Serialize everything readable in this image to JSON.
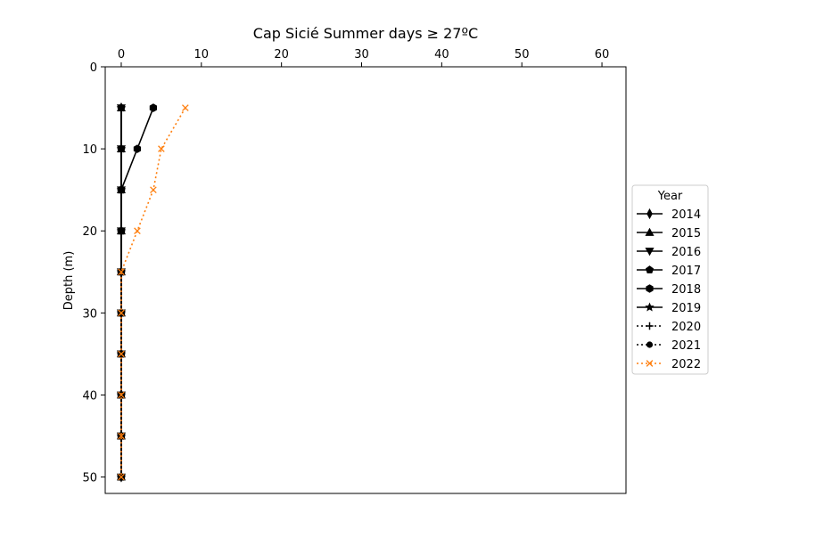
{
  "chart_data": {
    "type": "line",
    "title": "Cap Sicié Summer days ≥ 27ºC",
    "xlabel": "",
    "ylabel": "Depth (m)",
    "xlim": [
      -2,
      63
    ],
    "ylim": [
      52,
      0
    ],
    "x_axis_position": "top",
    "y_inverted": true,
    "xticks": [
      0,
      10,
      20,
      30,
      40,
      50,
      60
    ],
    "xtick_labels": [
      "0",
      "10",
      "20",
      "30",
      "40",
      "50",
      "60"
    ],
    "yticks": [
      0,
      10,
      20,
      30,
      40,
      50
    ],
    "ytick_labels": [
      "0",
      "10",
      "20",
      "30",
      "40",
      "50"
    ],
    "grid": false,
    "legend": {
      "title": "Year",
      "placement": "right"
    },
    "depths": [
      5,
      10,
      15,
      20,
      25,
      30,
      35,
      40,
      45,
      50
    ],
    "series": [
      {
        "name": "2014",
        "color": "#000000",
        "linestyle": "solid",
        "marker": "thin_diamond",
        "values": [
          0,
          0,
          0,
          0,
          0,
          0,
          0,
          0,
          0,
          0
        ]
      },
      {
        "name": "2015",
        "color": "#000000",
        "linestyle": "solid",
        "marker": "triangle_up",
        "values": [
          0,
          0,
          0,
          0,
          0,
          0,
          0,
          0,
          0,
          0
        ]
      },
      {
        "name": "2016",
        "color": "#000000",
        "linestyle": "solid",
        "marker": "triangle_down",
        "values": [
          0,
          0,
          0,
          0,
          0,
          0,
          0,
          0,
          0,
          0
        ]
      },
      {
        "name": "2017",
        "color": "#000000",
        "linestyle": "solid",
        "marker": "pentagon",
        "values": [
          0,
          0,
          0,
          0,
          0,
          0,
          0,
          0,
          0,
          0
        ]
      },
      {
        "name": "2018",
        "color": "#000000",
        "linestyle": "solid",
        "marker": "hexagon",
        "values": [
          4,
          2,
          0,
          0,
          0,
          0,
          0,
          0,
          0,
          0
        ]
      },
      {
        "name": "2019",
        "color": "#000000",
        "linestyle": "solid",
        "marker": "star",
        "values": [
          0,
          0,
          0,
          0,
          0,
          0,
          0,
          0,
          0,
          0
        ]
      },
      {
        "name": "2020",
        "color": "#000000",
        "linestyle": "dotted",
        "marker": "plus",
        "values": [
          0,
          0,
          0,
          0,
          0,
          0,
          0,
          0,
          0,
          0
        ]
      },
      {
        "name": "2021",
        "color": "#000000",
        "linestyle": "dotted",
        "marker": "circle",
        "values": [
          0,
          0,
          0,
          0,
          0,
          0,
          0,
          0,
          0,
          0
        ]
      },
      {
        "name": "2022",
        "color": "#ff7f0e",
        "linestyle": "dotted",
        "marker": "x",
        "values": [
          8,
          5,
          4,
          2,
          0,
          0,
          0,
          0,
          0,
          0
        ]
      }
    ]
  }
}
